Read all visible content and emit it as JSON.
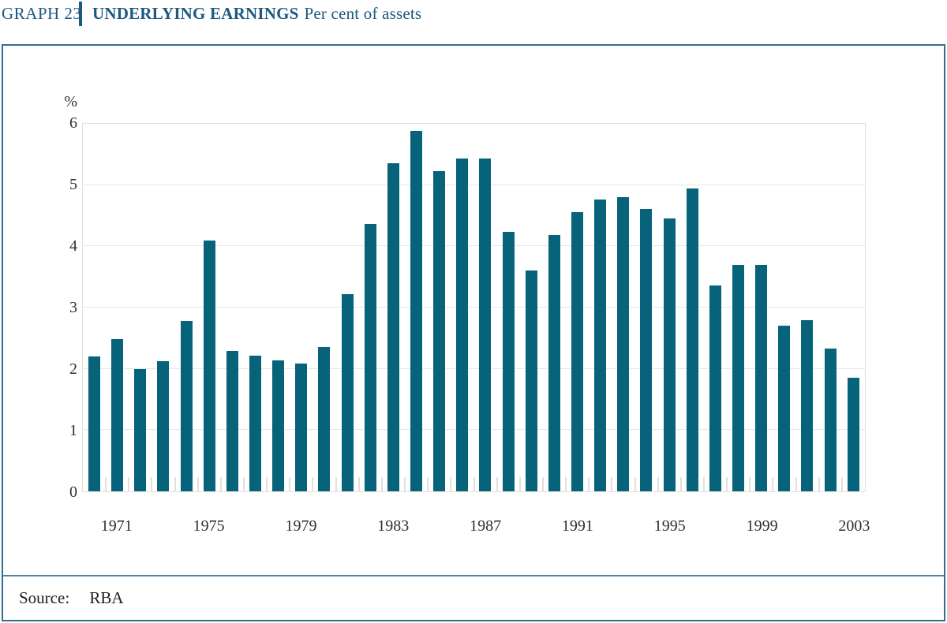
{
  "header": {
    "graph_label": "GRAPH 23",
    "title": "UNDERLYING EARNINGS",
    "subtitle": "Per cent of assets"
  },
  "source": {
    "label": "Source:",
    "value": "RBA"
  },
  "chart_data": {
    "type": "bar",
    "title": "UNDERLYING EARNINGS Per cent of assets",
    "unit_label": "%",
    "ylabel": "%",
    "xlabel": "",
    "ylim": [
      0,
      6
    ],
    "yticks": [
      0,
      1,
      2,
      3,
      4,
      5,
      6
    ],
    "grid": true,
    "legend_position": "none",
    "x": [
      1970,
      1971,
      1972,
      1973,
      1974,
      1975,
      1976,
      1977,
      1978,
      1979,
      1980,
      1981,
      1982,
      1983,
      1984,
      1985,
      1986,
      1987,
      1988,
      1989,
      1990,
      1991,
      1992,
      1993,
      1994,
      1995,
      1996,
      1997,
      1998,
      1999,
      2000,
      2001,
      2002,
      2003
    ],
    "values": [
      2.2,
      2.49,
      2.0,
      2.12,
      2.78,
      4.1,
      2.29,
      2.21,
      2.14,
      2.08,
      2.35,
      3.22,
      4.37,
      5.36,
      5.88,
      5.23,
      5.44,
      5.43,
      4.23,
      3.61,
      4.19,
      4.56,
      4.77,
      4.8,
      4.61,
      4.46,
      4.94,
      3.36,
      3.7,
      3.7,
      2.7,
      2.8,
      2.33,
      1.86
    ],
    "xtick_labels": [
      "1971",
      "1975",
      "1979",
      "1983",
      "1987",
      "1991",
      "1995",
      "1999",
      "2003"
    ]
  },
  "colors": {
    "bar": "#06637a",
    "title": "#1c5880",
    "box_border": "#2f6f92",
    "divider": "#4c85a6",
    "gridline": "#e6e6e6",
    "axis_text": "#2f2f2f"
  }
}
